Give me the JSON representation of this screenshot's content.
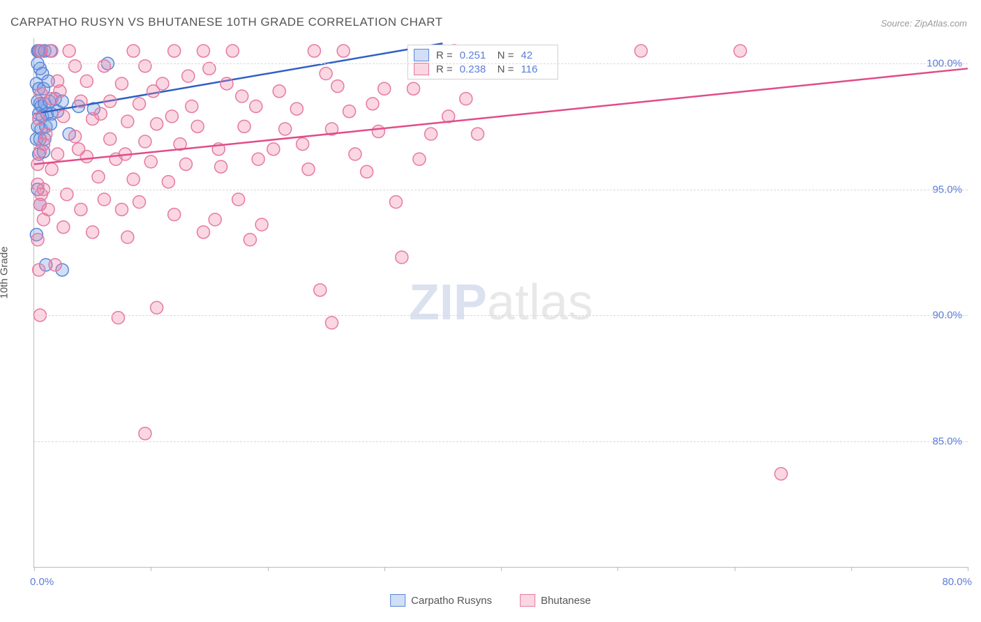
{
  "title": "CARPATHO RUSYN VS BHUTANESE 10TH GRADE CORRELATION CHART",
  "source": "Source: ZipAtlas.com",
  "ylabel": "10th Grade",
  "watermark_zip": "ZIP",
  "watermark_atlas": "atlas",
  "chart": {
    "type": "scatter",
    "xlim": [
      0,
      80
    ],
    "ylim": [
      80,
      101
    ],
    "xtick_positions": [
      0,
      10,
      20,
      30,
      40,
      50,
      60,
      70,
      80
    ],
    "ytick_positions": [
      85,
      90,
      95,
      100
    ],
    "ytick_labels": [
      "85.0%",
      "90.0%",
      "95.0%",
      "100.0%"
    ],
    "x_left_label": "0.0%",
    "x_right_label": "80.0%",
    "grid_color": "#d8d8d8",
    "axis_color": "#bbbbbb",
    "tick_label_color": "#5b7dd8",
    "marker_radius": 9,
    "marker_stroke_width": 1.5,
    "line_width": 2.5,
    "series": [
      {
        "name": "Carpatho Rusyns",
        "legend_label": "Carpatho Rusyns",
        "fill": "rgba(120,160,230,0.35)",
        "stroke": "#5b86d6",
        "line_color": "#2f5fc4",
        "r_label": "R =",
        "r_value": "0.251",
        "n_label": "N =",
        "n_value": "42",
        "trend": {
          "x1": 0,
          "y1": 98.0,
          "x2": 35,
          "y2": 100.8
        },
        "points": [
          [
            0.3,
            100.5
          ],
          [
            0.4,
            100.5
          ],
          [
            0.6,
            100.5
          ],
          [
            0.9,
            100.5
          ],
          [
            1.4,
            100.5
          ],
          [
            0.3,
            100.0
          ],
          [
            0.5,
            99.8
          ],
          [
            0.7,
            99.6
          ],
          [
            0.2,
            99.2
          ],
          [
            0.4,
            99.0
          ],
          [
            0.8,
            99.0
          ],
          [
            1.2,
            99.3
          ],
          [
            0.3,
            98.5
          ],
          [
            0.5,
            98.4
          ],
          [
            0.6,
            98.3
          ],
          [
            0.9,
            98.4
          ],
          [
            1.3,
            98.5
          ],
          [
            1.8,
            98.6
          ],
          [
            0.4,
            98.0
          ],
          [
            0.7,
            97.9
          ],
          [
            1.1,
            98.0
          ],
          [
            1.5,
            98.0
          ],
          [
            2.0,
            98.1
          ],
          [
            0.3,
            97.5
          ],
          [
            0.6,
            97.4
          ],
          [
            1.0,
            97.5
          ],
          [
            1.4,
            97.6
          ],
          [
            0.2,
            97.0
          ],
          [
            0.5,
            97.0
          ],
          [
            0.9,
            97.0
          ],
          [
            0.4,
            96.4
          ],
          [
            0.8,
            96.5
          ],
          [
            2.4,
            98.5
          ],
          [
            3.0,
            97.2
          ],
          [
            3.8,
            98.3
          ],
          [
            5.1,
            98.2
          ],
          [
            6.3,
            100.0
          ],
          [
            0.3,
            95.0
          ],
          [
            0.5,
            94.4
          ],
          [
            0.2,
            93.2
          ],
          [
            1.0,
            92.0
          ],
          [
            2.4,
            91.8
          ]
        ]
      },
      {
        "name": "Bhutanese",
        "legend_label": "Bhutanese",
        "fill": "rgba(240,130,165,0.32)",
        "stroke": "#e679a0",
        "line_color": "#e14c87",
        "r_label": "R =",
        "r_value": "0.238",
        "n_label": "N =",
        "n_value": "116",
        "trend": {
          "x1": 0,
          "y1": 96.0,
          "x2": 80,
          "y2": 99.8
        },
        "points": [
          [
            0.5,
            100.5
          ],
          [
            1.5,
            100.5
          ],
          [
            3.0,
            100.5
          ],
          [
            8.5,
            100.5
          ],
          [
            12.0,
            100.5
          ],
          [
            14.5,
            100.5
          ],
          [
            17.0,
            100.5
          ],
          [
            24.0,
            100.5
          ],
          [
            26.5,
            100.5
          ],
          [
            52.0,
            100.5
          ],
          [
            60.5,
            100.5
          ],
          [
            3.5,
            99.9
          ],
          [
            6.0,
            99.9
          ],
          [
            9.5,
            99.9
          ],
          [
            15.0,
            99.8
          ],
          [
            36.0,
            100.5
          ],
          [
            2.0,
            99.3
          ],
          [
            4.5,
            99.3
          ],
          [
            7.5,
            99.2
          ],
          [
            11.0,
            99.2
          ],
          [
            16.5,
            99.2
          ],
          [
            26.0,
            99.1
          ],
          [
            30.0,
            99.0
          ],
          [
            32.5,
            99.0
          ],
          [
            1.5,
            98.6
          ],
          [
            4.0,
            98.5
          ],
          [
            6.5,
            98.5
          ],
          [
            9.0,
            98.4
          ],
          [
            13.5,
            98.3
          ],
          [
            19.0,
            98.3
          ],
          [
            22.5,
            98.2
          ],
          [
            27.0,
            98.1
          ],
          [
            2.5,
            97.9
          ],
          [
            5.0,
            97.8
          ],
          [
            8.0,
            97.7
          ],
          [
            10.5,
            97.6
          ],
          [
            14.0,
            97.5
          ],
          [
            18.0,
            97.5
          ],
          [
            21.5,
            97.4
          ],
          [
            25.5,
            97.4
          ],
          [
            29.5,
            97.3
          ],
          [
            34.0,
            97.2
          ],
          [
            38.0,
            97.2
          ],
          [
            1.0,
            97.2
          ],
          [
            3.5,
            97.1
          ],
          [
            6.5,
            97.0
          ],
          [
            9.5,
            96.9
          ],
          [
            12.5,
            96.8
          ],
          [
            20.5,
            96.6
          ],
          [
            0.5,
            96.5
          ],
          [
            2.0,
            96.4
          ],
          [
            4.5,
            96.3
          ],
          [
            7.0,
            96.2
          ],
          [
            10.0,
            96.1
          ],
          [
            13.0,
            96.0
          ],
          [
            16.0,
            95.9
          ],
          [
            23.5,
            95.8
          ],
          [
            28.5,
            95.7
          ],
          [
            1.5,
            95.8
          ],
          [
            5.5,
            95.5
          ],
          [
            8.5,
            95.4
          ],
          [
            11.5,
            95.3
          ],
          [
            0.3,
            95.2
          ],
          [
            0.8,
            95.0
          ],
          [
            2.8,
            94.8
          ],
          [
            6.0,
            94.6
          ],
          [
            9.0,
            94.5
          ],
          [
            0.5,
            94.4
          ],
          [
            1.2,
            94.2
          ],
          [
            4.0,
            94.2
          ],
          [
            7.5,
            94.2
          ],
          [
            17.5,
            94.6
          ],
          [
            31.0,
            94.5
          ],
          [
            12.0,
            94.0
          ],
          [
            15.5,
            93.8
          ],
          [
            19.5,
            93.6
          ],
          [
            14.5,
            93.3
          ],
          [
            18.5,
            93.0
          ],
          [
            0.8,
            93.8
          ],
          [
            2.5,
            93.5
          ],
          [
            5.0,
            93.3
          ],
          [
            8.0,
            93.1
          ],
          [
            0.3,
            93.0
          ],
          [
            0.6,
            94.8
          ],
          [
            1.8,
            92.0
          ],
          [
            31.5,
            92.3
          ],
          [
            24.5,
            91.0
          ],
          [
            0.4,
            91.8
          ],
          [
            7.2,
            89.9
          ],
          [
            10.5,
            90.3
          ],
          [
            25.5,
            89.7
          ],
          [
            0.5,
            90.0
          ],
          [
            9.5,
            85.3
          ],
          [
            64.0,
            83.7
          ],
          [
            0.3,
            96.0
          ],
          [
            0.4,
            97.8
          ],
          [
            0.6,
            98.8
          ],
          [
            0.8,
            96.8
          ],
          [
            2.2,
            98.9
          ],
          [
            3.8,
            96.6
          ],
          [
            5.7,
            98.0
          ],
          [
            7.8,
            96.4
          ],
          [
            10.2,
            98.9
          ],
          [
            11.8,
            97.9
          ],
          [
            13.2,
            99.5
          ],
          [
            15.8,
            96.6
          ],
          [
            17.8,
            98.7
          ],
          [
            19.2,
            96.2
          ],
          [
            21.0,
            98.9
          ],
          [
            23.0,
            96.8
          ],
          [
            25.0,
            99.6
          ],
          [
            27.5,
            96.4
          ],
          [
            29.0,
            98.4
          ],
          [
            33.0,
            96.2
          ],
          [
            35.5,
            97.9
          ],
          [
            37.0,
            98.6
          ]
        ]
      }
    ]
  },
  "legend": {
    "series1_label": "Carpatho Rusyns",
    "series2_label": "Bhutanese"
  }
}
